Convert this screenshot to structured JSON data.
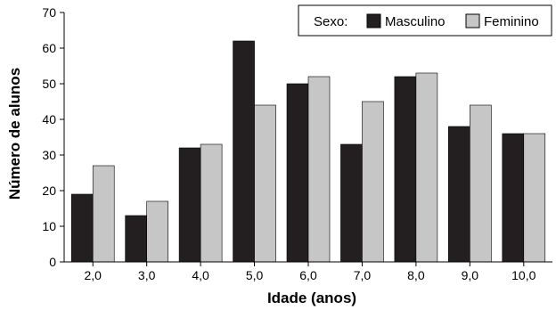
{
  "chart_data": {
    "type": "bar",
    "categories": [
      "2,0",
      "3,0",
      "4,0",
      "5,0",
      "6,0",
      "7,0",
      "8,0",
      "9,0",
      "10,0"
    ],
    "series": [
      {
        "name": "Masculino",
        "color": "#231f20",
        "values": [
          19,
          13,
          32,
          62,
          50,
          33,
          52,
          38,
          36
        ]
      },
      {
        "name": "Feminino",
        "color": "#c6c6c6",
        "values": [
          27,
          17,
          33,
          44,
          52,
          45,
          53,
          44,
          36
        ]
      }
    ],
    "xlabel": "Idade (anos)",
    "ylabel": "Número de alunos",
    "ylim": [
      0,
      70
    ],
    "yticks": [
      0,
      10,
      20,
      30,
      40,
      50,
      60,
      70
    ],
    "legend_title": "Sexo:",
    "legend_position": "top-right",
    "grid": false
  }
}
